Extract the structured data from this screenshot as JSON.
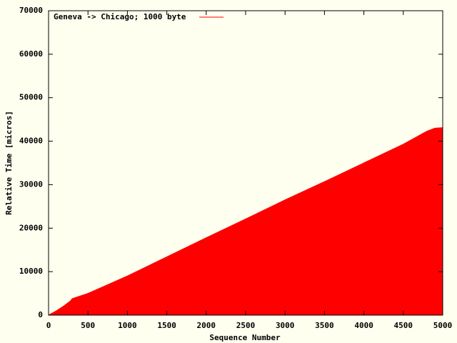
{
  "chart_data": {
    "type": "area",
    "x_label": "Sequence Number",
    "y_label": "Relative Time [micros]",
    "x": [
      0,
      100,
      200,
      280,
      300,
      500,
      1000,
      1500,
      2000,
      2500,
      3000,
      3500,
      4000,
      4500,
      4800,
      4900,
      5000
    ],
    "series": [
      {
        "name": "Geneva -> Chicago; 1000 byte",
        "color": "#ff0000",
        "values": [
          0,
          1000,
          2200,
          3300,
          3800,
          5000,
          9000,
          13400,
          17800,
          22100,
          26500,
          30700,
          35000,
          39300,
          42300,
          43000,
          43100
        ]
      }
    ],
    "xlim": [
      0,
      5000
    ],
    "xticks": [
      0,
      500,
      1000,
      1500,
      2000,
      2500,
      3000,
      3500,
      4000,
      4500,
      5000
    ],
    "ylim": [
      0,
      70000
    ],
    "yticks": [
      0,
      10000,
      20000,
      30000,
      40000,
      50000,
      60000,
      70000
    ],
    "legend": "top-left",
    "background": "#fffff0"
  }
}
